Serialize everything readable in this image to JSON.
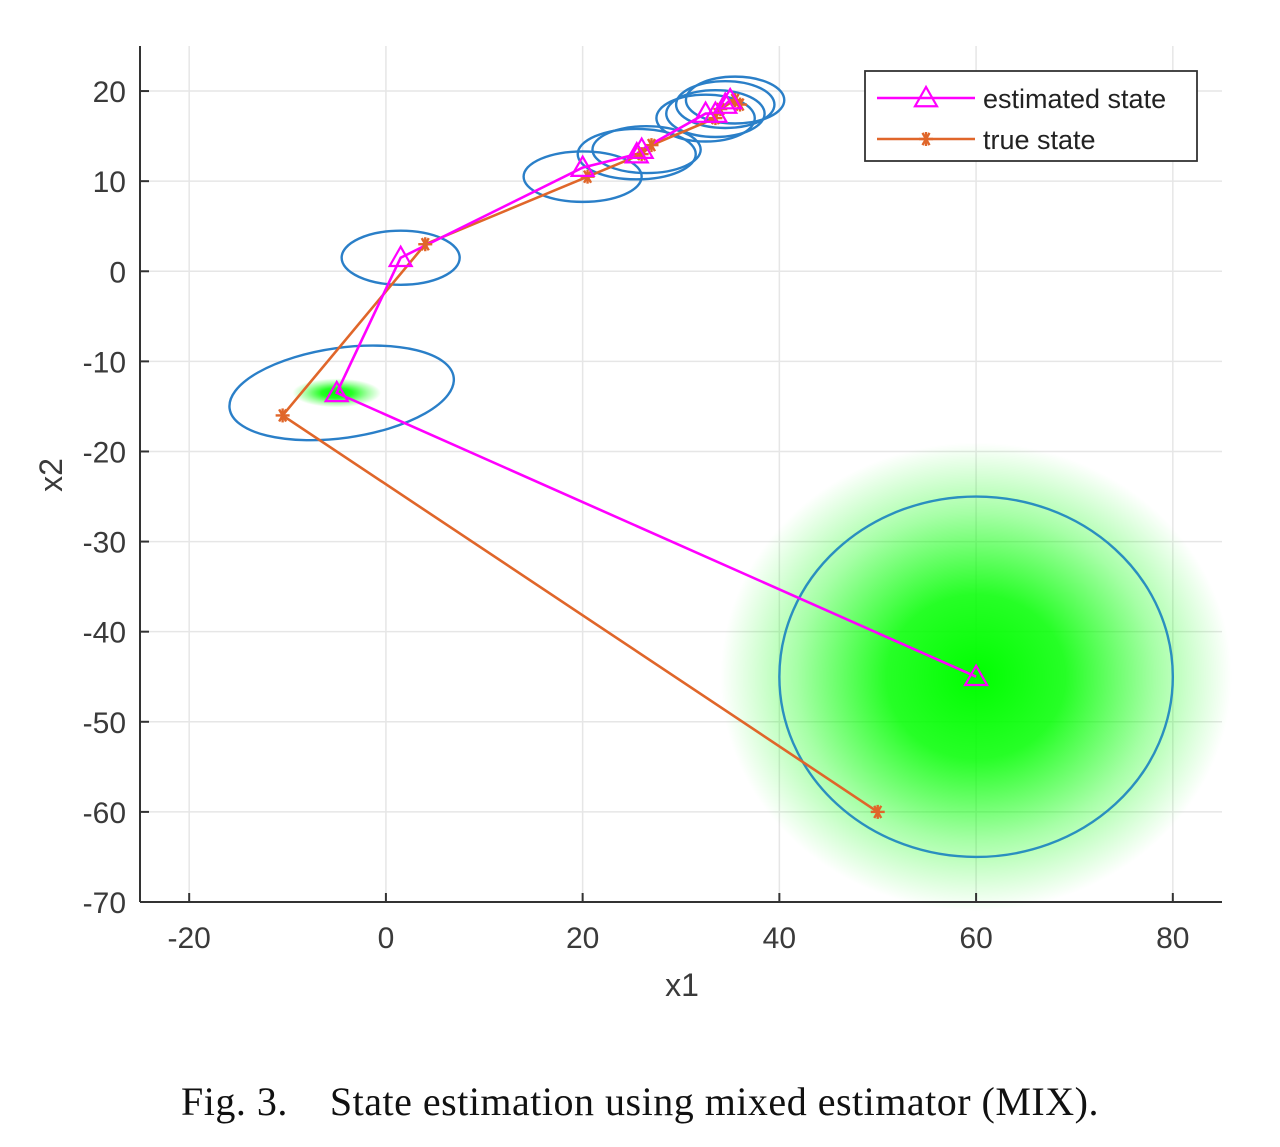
{
  "caption": "Fig. 3.    State estimation using mixed estimator (MIX).",
  "chart_data": {
    "type": "line",
    "title": "",
    "xlabel": "x1",
    "ylabel": "x2",
    "xlim": [
      -25,
      85
    ],
    "ylim": [
      -70,
      25
    ],
    "xticks": [
      -20,
      0,
      20,
      40,
      60,
      80
    ],
    "yticks": [
      -70,
      -60,
      -50,
      -40,
      -30,
      -20,
      -10,
      0,
      10,
      20
    ],
    "grid": true,
    "legend": {
      "placement": "top-right",
      "entries": [
        "estimated state",
        "true state"
      ]
    },
    "series": [
      {
        "name": "estimated state",
        "marker": "triangle",
        "color": "#ff00ff",
        "x": [
          60,
          -5,
          1.5,
          20,
          25.5,
          26,
          32.5,
          33.5,
          34.5,
          35
        ],
        "y": [
          -45,
          -13.5,
          1.5,
          11.5,
          13,
          13.5,
          17.5,
          17.5,
          18.5,
          19
        ]
      },
      {
        "name": "true state",
        "marker": "asterisk",
        "color": "#e0662a",
        "x": [
          50,
          -10.5,
          4,
          20.5,
          26,
          27,
          33.5,
          34,
          35.5,
          36
        ],
        "y": [
          -60,
          -16,
          3,
          10.5,
          13,
          14,
          17,
          18,
          19,
          18.5
        ]
      }
    ],
    "ellipses": [
      {
        "cx": 60,
        "cy": -45,
        "rx": 20,
        "ry": 20,
        "color": "#2a8fbf"
      },
      {
        "cx": -4.5,
        "cy": -13.5,
        "rx": 11.5,
        "ry": 5,
        "tilt": 8,
        "color": "#2a7fc8"
      },
      {
        "cx": 1.5,
        "cy": 1.5,
        "rx": 6,
        "ry": 3,
        "color": "#2a7fc8"
      },
      {
        "cx": 20,
        "cy": 10.5,
        "rx": 6,
        "ry": 2.8,
        "color": "#2a7fc8"
      },
      {
        "cx": 25.5,
        "cy": 13,
        "rx": 6,
        "ry": 2.8,
        "color": "#2a7fc8"
      },
      {
        "cx": 26.5,
        "cy": 13.5,
        "rx": 5.5,
        "ry": 2.6,
        "color": "#2a7fc8"
      },
      {
        "cx": 32.5,
        "cy": 17,
        "rx": 5,
        "ry": 2.6,
        "color": "#2a7fc8"
      },
      {
        "cx": 33.5,
        "cy": 17.5,
        "rx": 5,
        "ry": 2.6,
        "color": "#2a7fc8"
      },
      {
        "cx": 34.5,
        "cy": 18.5,
        "rx": 5,
        "ry": 2.6,
        "color": "#2a7fc8"
      },
      {
        "cx": 35.5,
        "cy": 19,
        "rx": 5,
        "ry": 2.6,
        "color": "#2a7fc8"
      }
    ],
    "density_blobs": [
      {
        "cx": 60,
        "cy": -45,
        "rx": 26,
        "ry": 26,
        "color": "#00ff00"
      },
      {
        "cx": -5,
        "cy": -13.5,
        "rx": 4.5,
        "ry": 1.6,
        "color": "#00ff00"
      }
    ]
  }
}
